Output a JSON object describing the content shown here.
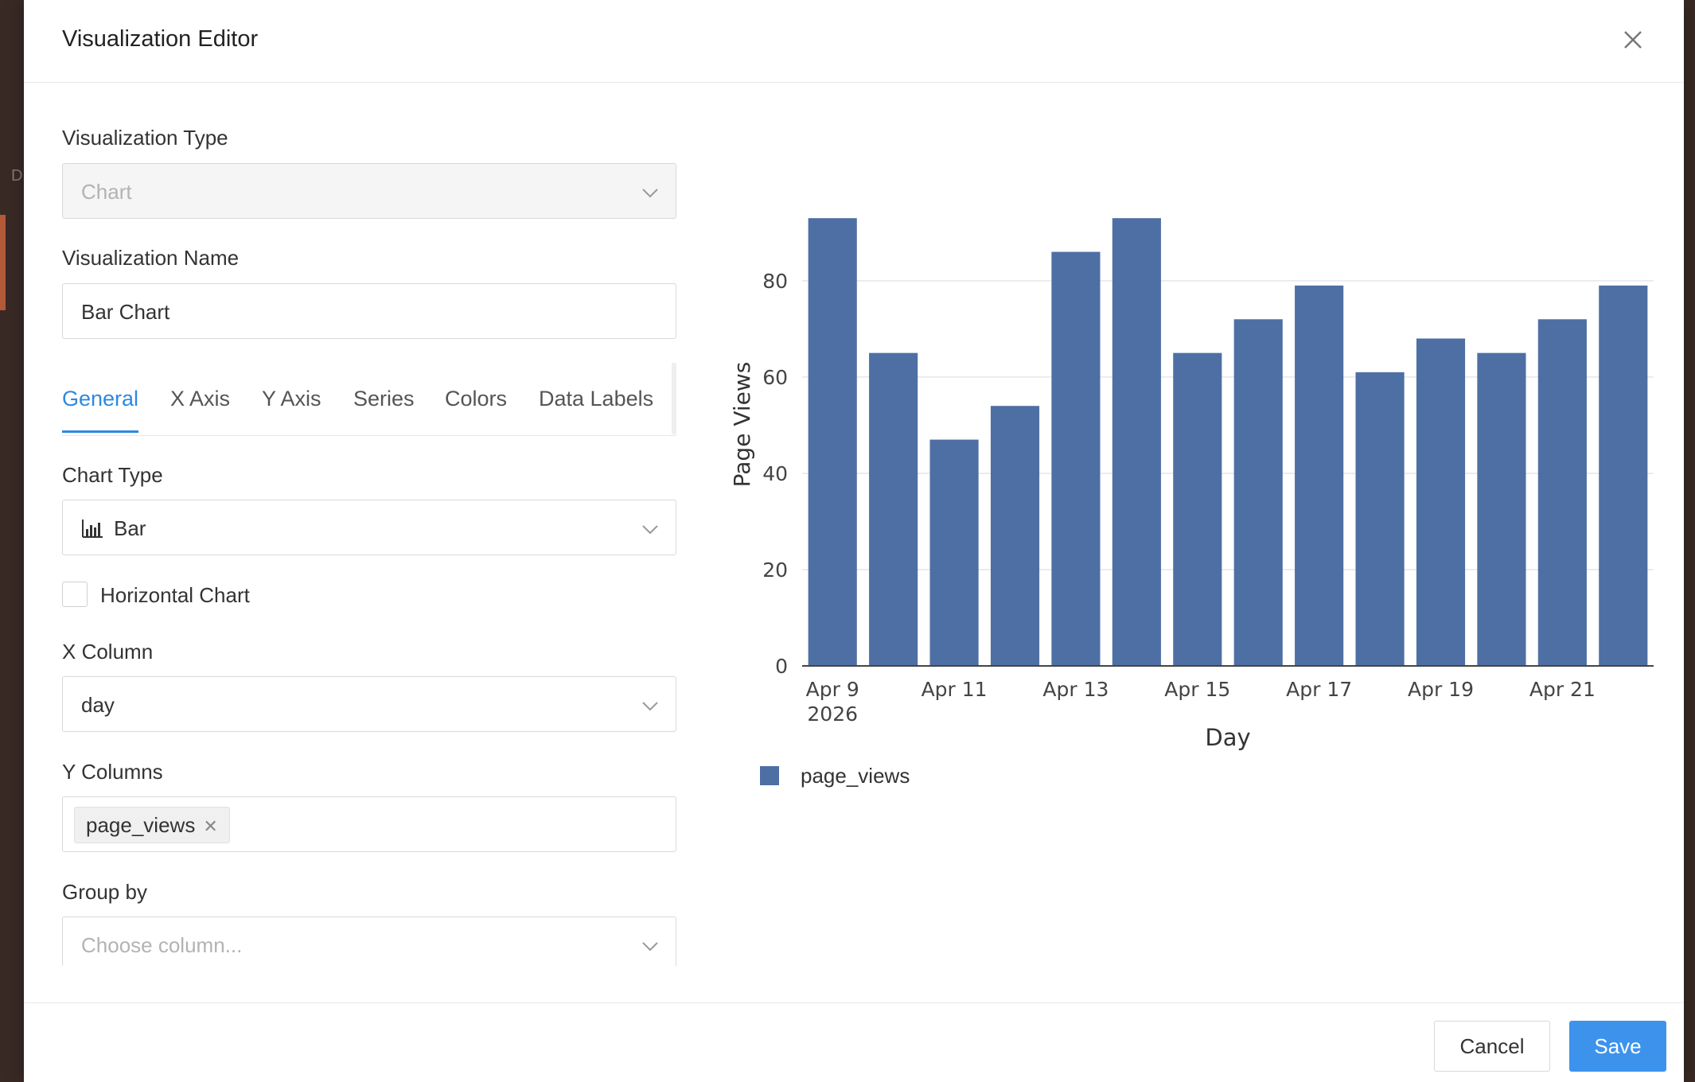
{
  "modal": {
    "title": "Visualization Editor"
  },
  "form": {
    "viz_type": {
      "label": "Visualization Type",
      "value": "Chart"
    },
    "viz_name": {
      "label": "Visualization Name",
      "value": "Bar Chart"
    },
    "tabs": [
      {
        "label": "General",
        "active": true
      },
      {
        "label": "X Axis",
        "active": false
      },
      {
        "label": "Y Axis",
        "active": false
      },
      {
        "label": "Series",
        "active": false
      },
      {
        "label": "Colors",
        "active": false
      },
      {
        "label": "Data Labels",
        "active": false
      }
    ],
    "chart_type": {
      "label": "Chart Type",
      "value": "Bar"
    },
    "horizontal": {
      "label": "Horizontal Chart",
      "checked": false
    },
    "x_column": {
      "label": "X Column",
      "value": "day"
    },
    "y_columns": {
      "label": "Y Columns",
      "tags": [
        "page_views"
      ]
    },
    "group_by": {
      "label": "Group by",
      "placeholder": "Choose column..."
    }
  },
  "footer": {
    "cancel_label": "Cancel",
    "save_label": "Save"
  },
  "colors": {
    "accent": "#2d88e0",
    "bar": "#4e6fa3",
    "save_button": "#3d93ec"
  },
  "chart_data": {
    "type": "bar",
    "categories": [
      "2026-04-09",
      "2026-04-10",
      "2026-04-11",
      "2026-04-12",
      "2026-04-13",
      "2026-04-14",
      "2026-04-15",
      "2026-04-16",
      "2026-04-17",
      "2026-04-18",
      "2026-04-19",
      "2026-04-20",
      "2026-04-21",
      "2026-04-22"
    ],
    "tick_labels": [
      "Apr 9",
      "Apr 11",
      "Apr 13",
      "Apr 15",
      "Apr 17",
      "Apr 19",
      "Apr 21"
    ],
    "tick_year": "2026",
    "series": [
      {
        "name": "page_views",
        "values": [
          93,
          65,
          47,
          54,
          86,
          93,
          65,
          72,
          79,
          61,
          68,
          65,
          72,
          79
        ]
      }
    ],
    "xlabel": "Day",
    "ylabel": "Page Views",
    "yticks": [
      0,
      20,
      40,
      60,
      80
    ],
    "ylim": [
      0,
      97
    ],
    "grid": true,
    "legend": "bottom-left"
  }
}
